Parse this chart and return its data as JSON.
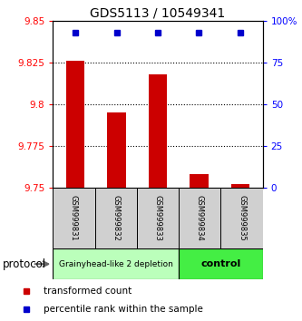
{
  "title": "GDS5113 / 10549341",
  "samples": [
    "GSM999831",
    "GSM999832",
    "GSM999833",
    "GSM999834",
    "GSM999835"
  ],
  "bar_values": [
    9.826,
    9.795,
    9.818,
    9.758,
    9.752
  ],
  "bar_base": 9.75,
  "percentile_y_left": 9.843,
  "ylim_left": [
    9.75,
    9.85
  ],
  "ylim_right": [
    0,
    100
  ],
  "yticks_left": [
    9.75,
    9.775,
    9.8,
    9.825,
    9.85
  ],
  "yticks_right": [
    0,
    25,
    50,
    75,
    100
  ],
  "ytick_labels_left": [
    "9.75",
    "9.775",
    "9.8",
    "9.825",
    "9.85"
  ],
  "ytick_labels_right": [
    "0",
    "25",
    "50",
    "75",
    "100%"
  ],
  "hlines": [
    9.775,
    9.8,
    9.825
  ],
  "bar_color": "#cc0000",
  "percentile_color": "#0000cc",
  "group1_label": "Grainyhead-like 2 depletion",
  "group1_color": "#bbffbb",
  "group2_label": "control",
  "group2_color": "#44ee44",
  "protocol_label": "protocol",
  "legend_bar_label": "transformed count",
  "legend_pct_label": "percentile rank within the sample",
  "bg_color": "#ffffff",
  "label_box_color": "#d0d0d0",
  "bar_width": 0.45,
  "title_fontsize": 10,
  "tick_fontsize": 7.5,
  "sample_fontsize": 6,
  "proto_fontsize1": 6.5,
  "proto_fontsize2": 8,
  "legend_fontsize": 7.5,
  "xlim": [
    -0.55,
    4.55
  ]
}
